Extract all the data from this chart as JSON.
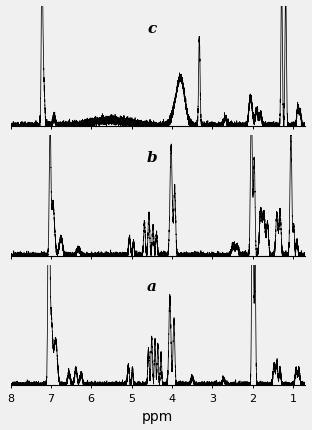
{
  "xlabel": "ppm",
  "panel_labels": [
    "c",
    "b",
    "a"
  ],
  "x_min": 8.0,
  "x_max": 0.7,
  "background_color": "#f0f0f0",
  "line_color": "#000000",
  "figsize": [
    3.12,
    4.31
  ],
  "dpi": 100,
  "label_fontsize": 11,
  "xlabel_fontsize": 10,
  "xticks": [
    8,
    7,
    6,
    5,
    4,
    3,
    2,
    1
  ]
}
